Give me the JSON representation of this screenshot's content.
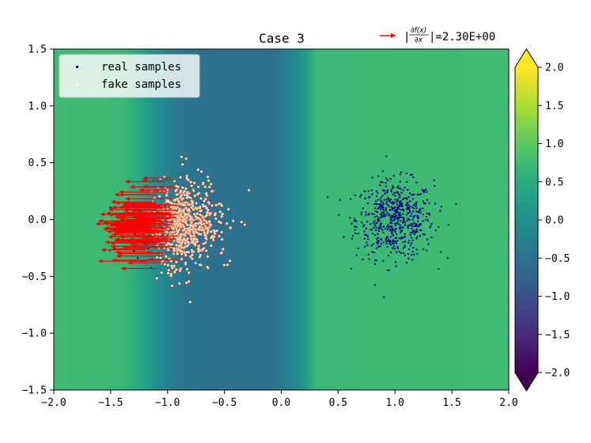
{
  "chart_data": {
    "type": "scatter",
    "title": "Case 3",
    "xlabel": "",
    "ylabel": "",
    "xlim": [
      -2.0,
      2.0
    ],
    "ylim": [
      -1.5,
      1.5
    ],
    "x_ticks": [
      "−2.0",
      "−1.5",
      "−1.0",
      "−0.5",
      "0.0",
      "0.5",
      "1.0",
      "1.5",
      "2.0"
    ],
    "x_tick_values": [
      -2.0,
      -1.5,
      -1.0,
      -0.5,
      0.0,
      0.5,
      1.0,
      1.5,
      2.0
    ],
    "y_ticks": [
      "−1.5",
      "−1.0",
      "−0.5",
      "0.0",
      "0.5",
      "1.0",
      "1.5"
    ],
    "y_tick_values": [
      -1.5,
      -1.0,
      -0.5,
      0.0,
      0.5,
      1.0,
      1.5
    ],
    "legend": {
      "placement": "upper-left",
      "entries": [
        {
          "label": "real samples",
          "color": "#000080"
        },
        {
          "label": "fake samples",
          "color": "#ffffff"
        }
      ]
    },
    "quiver_key": {
      "label_prefix": "|",
      "numerator": "∂f(x)",
      "denominator": "∂x",
      "label_suffix": "|=2.30E+00",
      "color": "#ff0000"
    },
    "colorbar": {
      "ticks": [
        "−2.0",
        "−1.5",
        "−1.0",
        "−0.5",
        "0.0",
        "0.5",
        "1.0",
        "1.5",
        "2.0"
      ],
      "tick_values": [
        -2.0,
        -1.5,
        -1.0,
        -0.5,
        0.0,
        0.5,
        1.0,
        1.5,
        2.0
      ],
      "range": [
        -2.0,
        2.0
      ],
      "colormap": "viridis",
      "extend": "both"
    },
    "background_field": {
      "description_profile_x": [
        -2.0,
        -1.4,
        -1.25,
        -1.1,
        -0.85,
        -0.3,
        -0.1,
        0.15,
        0.25,
        0.3,
        2.0
      ],
      "description_profile_value": [
        0.75,
        0.7,
        0.45,
        0.0,
        -0.45,
        -0.5,
        -0.5,
        -0.1,
        0.4,
        0.7,
        0.75
      ]
    },
    "series": [
      {
        "name": "real samples",
        "kind": "scatter",
        "color": "#000080",
        "center": [
          1.0,
          0.0
        ],
        "std": [
          0.17,
          0.17
        ],
        "count": 600,
        "extra_center": [
          -1.25,
          -0.1
        ],
        "extra_std": [
          0.15,
          0.18
        ],
        "extra_count": 40
      },
      {
        "name": "fake samples",
        "kind": "scatter",
        "color": "#ffffff",
        "edge": "#ff4d00",
        "center": [
          -0.95,
          -0.05
        ],
        "std": [
          0.2,
          0.18
        ],
        "count": 700
      },
      {
        "name": "gradient",
        "kind": "quiver",
        "color": "#ff0000",
        "x_range": [
          -1.2,
          -0.9
        ],
        "dx_range": [
          -0.25,
          -0.45
        ],
        "count": 120
      }
    ]
  }
}
